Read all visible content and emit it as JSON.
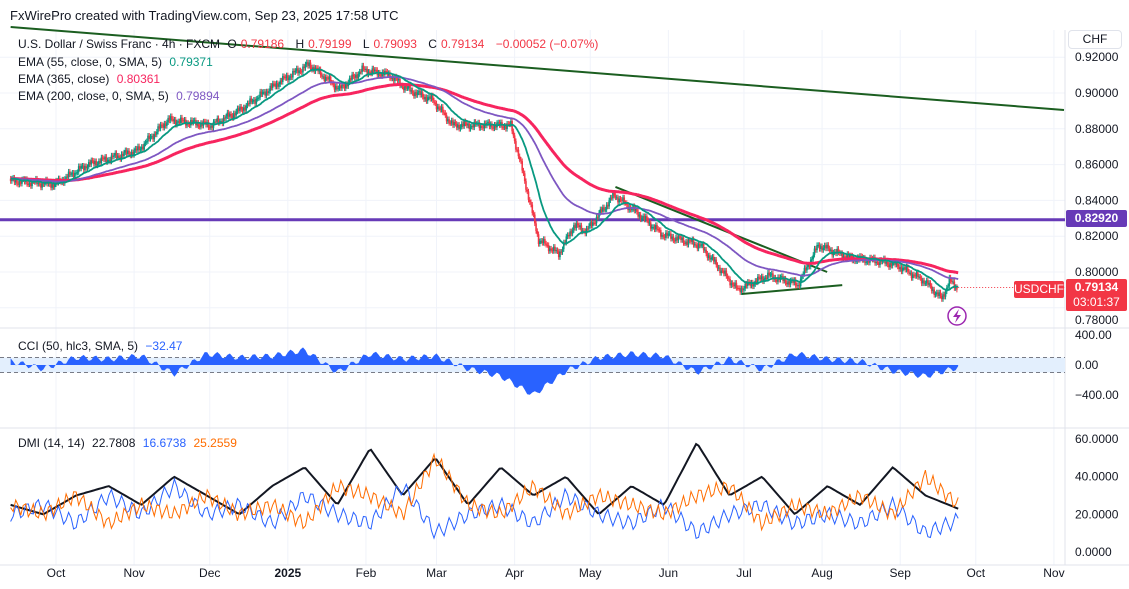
{
  "header": {
    "attribution": "FxWirePro created with TradingView.com, Sep 23, 2025 17:58 UTC"
  },
  "legend": {
    "symbol": "U.S. Dollar / Swiss Franc · 4h · FXCM",
    "o_label": "O",
    "o": "0.79186",
    "h_label": "H",
    "h": "0.79199",
    "l_label": "L",
    "l": "0.79093",
    "c_label": "C",
    "c": "0.79134",
    "change": "−0.00052 (−0.07%)",
    "ema55_label": "EMA (55, close, 0, SMA, 5)",
    "ema55": "0.79371",
    "ema365_label": "EMA (365, close)",
    "ema365": "0.80361",
    "ema200_label": "EMA (200, close, 0, SMA, 5)",
    "ema200": "0.79894",
    "cci_label": "CCI (50, hlc3, SMA, 5)",
    "cci": "−32.47",
    "dmi_label": "DMI (14, 14)",
    "adx": "22.7808",
    "di_plus": "16.6738",
    "di_minus": "25.2559"
  },
  "price_axis": {
    "currency": "CHF",
    "level_tag": "0.82920",
    "symbol_tag": "USDCHF",
    "last_price": "0.79134",
    "countdown": "03:01:37"
  },
  "colors": {
    "up": "#089981",
    "down": "#f23645",
    "ema55": "#089981",
    "ema200": "#7e57c2",
    "ema365": "#f7255f",
    "trend": "#1b5e20",
    "level": "#673ab7",
    "cci": "#2962ff",
    "adx": "#131722",
    "di_plus": "#2962ff",
    "di_minus": "#ff6d00"
  },
  "chart_data": [
    {
      "type": "line",
      "title": "U.S. Dollar / Swiss Franc · 4h · FXCM",
      "x_unit": "days since Oct 1 2024",
      "ylim": [
        0.7687,
        0.9369
      ],
      "yticks": [
        "0.92000",
        "0.90000",
        "0.88000",
        "0.86000",
        "0.84000",
        "0.82000",
        "0.80000",
        "0.78000"
      ],
      "ytick_values": [
        0.92,
        0.9,
        0.88,
        0.86,
        0.84,
        0.82,
        0.8,
        0.78
      ],
      "xticks": [
        {
          "label": "Oct",
          "d": 0
        },
        {
          "label": "Nov",
          "d": 31
        },
        {
          "label": "Dec",
          "d": 61
        },
        {
          "label": "2025",
          "d": 92
        },
        {
          "label": "Feb",
          "d": 123
        },
        {
          "label": "Mar",
          "d": 151
        },
        {
          "label": "Apr",
          "d": 182
        },
        {
          "label": "May",
          "d": 212
        },
        {
          "label": "Jun",
          "d": 243
        },
        {
          "label": "Jul",
          "d": 273
        },
        {
          "label": "Aug",
          "d": 304
        },
        {
          "label": "Sep",
          "d": 335
        },
        {
          "label": "Oct",
          "d": 365
        },
        {
          "label": "Nov",
          "d": 396
        }
      ],
      "close": {
        "d": [
          -18,
          0,
          13,
          33,
          45,
          62,
          73,
          90,
          101,
          113,
          122,
          133,
          140,
          150,
          158,
          168,
          181,
          186,
          192,
          200,
          206,
          211,
          222,
          232,
          241,
          256,
          271,
          283,
          295,
          303,
          315,
          327,
          334,
          345,
          352,
          355,
          358
        ],
        "v": [
          0.851,
          0.849,
          0.86,
          0.868,
          0.885,
          0.882,
          0.89,
          0.907,
          0.916,
          0.902,
          0.913,
          0.91,
          0.902,
          0.896,
          0.882,
          0.882,
          0.882,
          0.854,
          0.818,
          0.81,
          0.826,
          0.823,
          0.843,
          0.832,
          0.821,
          0.815,
          0.79,
          0.798,
          0.793,
          0.815,
          0.808,
          0.806,
          0.804,
          0.795,
          0.785,
          0.795,
          0.7913
        ]
      },
      "horizontal_level": 0.8292,
      "trendlines": [
        {
          "name": "long-term-downtrend",
          "from": [
            -18,
            0.9369
          ],
          "to": [
            400,
            0.8905
          ]
        },
        {
          "name": "triangle-upper",
          "from": [
            222,
            0.8475
          ],
          "to": [
            306,
            0.8
          ]
        },
        {
          "name": "triangle-lower",
          "from": [
            272,
            0.7877
          ],
          "to": [
            312,
            0.7927
          ]
        }
      ]
    },
    {
      "type": "area",
      "title": "CCI (50, hlc3, SMA, 5)",
      "ylim": [
        -480,
        480
      ],
      "yticks": [
        "400.00",
        "0.00",
        "−400.00"
      ],
      "ytick_values": [
        400,
        0,
        -400
      ],
      "bands": [
        100,
        -100
      ],
      "d_start": -18,
      "d_end": 358,
      "values": [
        50,
        -50,
        100,
        80,
        120,
        -120,
        150,
        100,
        120,
        200,
        -100,
        150,
        80,
        120,
        -50,
        -150,
        -400,
        -80,
        100,
        150,
        120,
        -100,
        80,
        -60,
        150,
        80,
        50,
        -80,
        -150,
        -32
      ]
    },
    {
      "type": "line",
      "title": "DMI (14, 14)",
      "ylim": [
        -3,
        63
      ],
      "yticks": [
        "60.0000",
        "40.0000",
        "20.0000",
        "0.0000"
      ],
      "ytick_values": [
        60,
        40,
        20,
        0
      ],
      "d_start": -18,
      "d_end": 358,
      "series": [
        {
          "name": "ADX",
          "values": [
            25,
            20,
            30,
            35,
            25,
            40,
            30,
            20,
            35,
            45,
            25,
            55,
            30,
            50,
            25,
            45,
            30,
            40,
            20,
            35,
            25,
            58,
            30,
            40,
            20,
            35,
            25,
            45,
            30,
            23
          ]
        },
        {
          "name": "+DI",
          "values": [
            20,
            25,
            15,
            30,
            20,
            35,
            20,
            25,
            15,
            30,
            20,
            15,
            35,
            10,
            20,
            25,
            15,
            30,
            20,
            15,
            25,
            10,
            20,
            25,
            15,
            20,
            15,
            25,
            10,
            17
          ]
        },
        {
          "name": "-DI",
          "values": [
            25,
            20,
            30,
            15,
            25,
            20,
            30,
            20,
            25,
            15,
            35,
            30,
            20,
            50,
            25,
            20,
            35,
            20,
            30,
            25,
            20,
            30,
            35,
            15,
            25,
            20,
            30,
            20,
            40,
            25
          ]
        }
      ]
    }
  ]
}
